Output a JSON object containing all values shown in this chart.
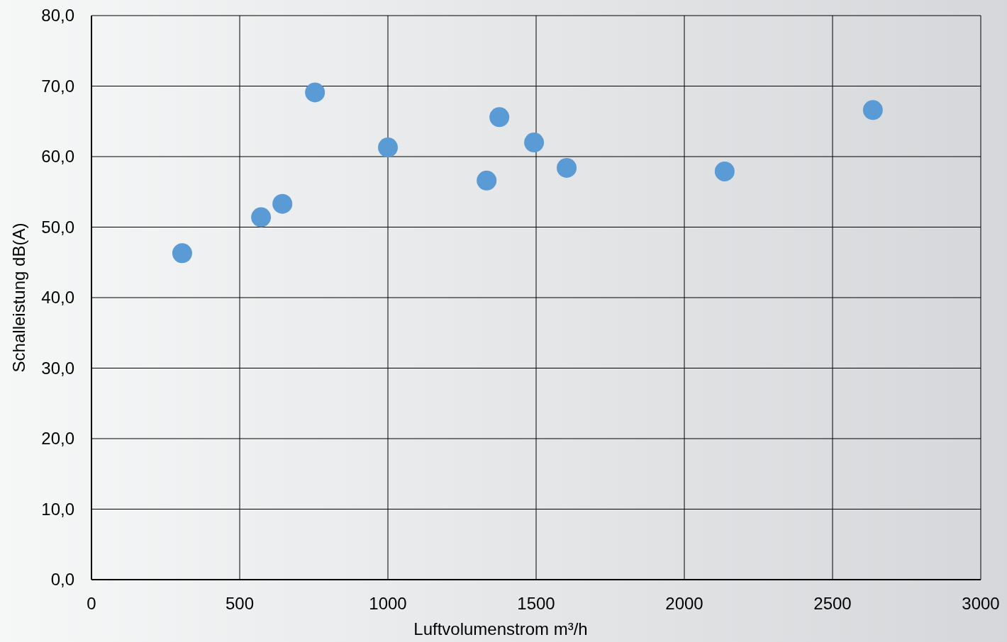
{
  "chart_data": {
    "type": "scatter",
    "xlabel": "Luftvolumenstrom m³/h",
    "ylabel": "Schalleistung dB(A)",
    "x": [
      306,
      572,
      644,
      754,
      1000,
      1333,
      1376,
      1493,
      1603,
      2136,
      2636
    ],
    "series": [
      {
        "color": "#5b9bd5",
        "values": [
          46.3,
          51.4,
          53.3,
          69.1,
          61.3,
          56.6,
          65.6,
          62.0,
          58.4,
          57.9,
          66.6
        ]
      }
    ],
    "xlim": [
      0,
      3000
    ],
    "xticks": [
      0,
      500,
      1000,
      1500,
      2000,
      2500,
      3000
    ],
    "ylim": [
      0,
      80
    ],
    "yticks": [
      {
        "value": 0,
        "label": "0,0"
      },
      {
        "value": 10,
        "label": "10,0"
      },
      {
        "value": 20,
        "label": "20,0"
      },
      {
        "value": 30,
        "label": "30,0"
      },
      {
        "value": 40,
        "label": "40,0"
      },
      {
        "value": 50,
        "label": "50,0"
      },
      {
        "value": 60,
        "label": "60,0"
      },
      {
        "value": 70,
        "label": "70,0"
      },
      {
        "value": 80,
        "label": "80,0"
      }
    ],
    "grid": true,
    "marker": "circle"
  }
}
